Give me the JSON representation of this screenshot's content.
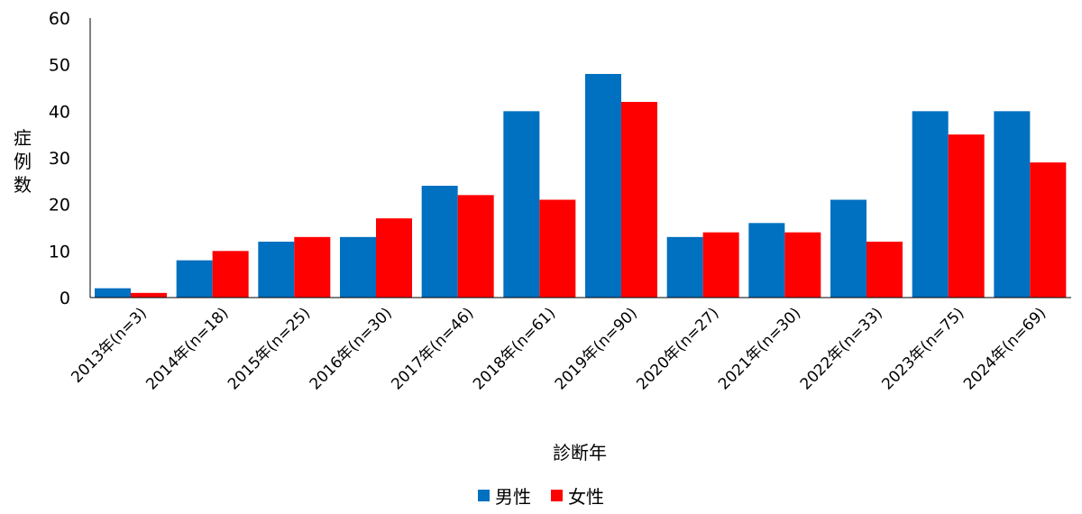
{
  "chart_data": {
    "type": "bar",
    "title": "",
    "xlabel": "診断年",
    "ylabel": "症例数",
    "ylim": [
      0,
      60
    ],
    "yticks": [
      0,
      10,
      20,
      30,
      40,
      50,
      60
    ],
    "categories": [
      "2013年(n=3)",
      "2014年(n=18)",
      "2015年(n=25)",
      "2016年(n=30)",
      "2017年(n=46)",
      "2018年(n=61)",
      "2019年(n=90)",
      "2020年(n=27)",
      "2021年(n=30)",
      "2022年(n=33)",
      "2023年(n=75)",
      "2024年(n=69)"
    ],
    "series": [
      {
        "name": "男性",
        "color": "#0070C0",
        "values": [
          2,
          8,
          12,
          13,
          24,
          40,
          48,
          13,
          16,
          21,
          40,
          40
        ]
      },
      {
        "name": "女性",
        "color": "#FF0000",
        "values": [
          1,
          10,
          13,
          17,
          22,
          21,
          42,
          14,
          14,
          12,
          35,
          29
        ]
      }
    ],
    "grid": false,
    "legend_position": "bottom"
  }
}
